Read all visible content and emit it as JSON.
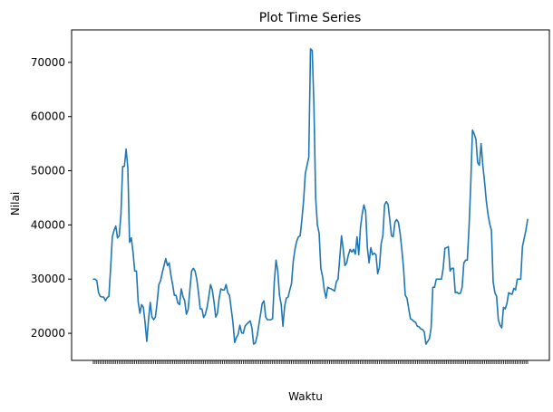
{
  "chart_data": {
    "type": "line",
    "title": "Plot Time Series",
    "xlabel": "Waktu",
    "ylabel": "Nilai",
    "ylim": [
      15000,
      76000
    ],
    "yticks": [
      20000,
      30000,
      40000,
      50000,
      60000,
      70000
    ],
    "grid": false,
    "series": [
      {
        "color": "#1f77b4",
        "values": [
          30000,
          30000,
          29700,
          27500,
          26800,
          26700,
          26700,
          26000,
          26600,
          26800,
          32000,
          37800,
          39000,
          39800,
          37600,
          38000,
          42000,
          50800,
          50800,
          54000,
          50500,
          36800,
          37600,
          35000,
          31500,
          31500,
          25800,
          23700,
          25300,
          24800,
          22000,
          18500,
          22500,
          25700,
          23000,
          22500,
          23000,
          25700,
          29000,
          29700,
          31200,
          32500,
          33800,
          32500,
          33000,
          30700,
          29000,
          27000,
          27000,
          25600,
          25300,
          28200,
          26800,
          26000,
          23500,
          24400,
          28000,
          31500,
          32000,
          31500,
          30000,
          27500,
          24500,
          24500,
          22900,
          23500,
          24800,
          26800,
          29000,
          28000,
          25800,
          23000,
          23700,
          26500,
          28200,
          28000,
          28000,
          29000,
          27500,
          27000,
          24500,
          22000,
          18300,
          19200,
          19800,
          21500,
          20100,
          20000,
          21300,
          21700,
          22000,
          22300,
          21000,
          18000,
          18200,
          19500,
          21500,
          23500,
          25500,
          26000,
          23000,
          22500,
          22500,
          22500,
          22700,
          29500,
          33500,
          31500,
          27000,
          25300,
          21300,
          25000,
          26500,
          26700,
          28000,
          29200,
          33300,
          35500,
          37000,
          37800,
          38000,
          41000,
          44500,
          49500,
          51000,
          52500,
          72500,
          72200,
          62000,
          45000,
          40000,
          38500,
          32000,
          30500,
          28000,
          26500,
          28500,
          28300,
          28200,
          28000,
          27800,
          29500,
          30000,
          34000,
          38000,
          35500,
          32500,
          33000,
          34500,
          35500,
          35000,
          35500,
          34600,
          37800,
          34500,
          39500,
          42000,
          43700,
          42500,
          35800,
          33000,
          35800,
          34500,
          34800,
          34500,
          31000,
          32200,
          36500,
          38000,
          43700,
          44300,
          43800,
          41000,
          38000,
          37800,
          40500,
          41000,
          40500,
          38500,
          35500,
          32000,
          27000,
          26500,
          24500,
          22700,
          22500,
          22200,
          22000,
          21300,
          21200,
          20800,
          20700,
          20300,
          18000,
          18500,
          19000,
          21000,
          28500,
          28500,
          30000,
          30000,
          30000,
          30000,
          32000,
          35700,
          35800,
          36000,
          31500,
          32000,
          32000,
          27500,
          27600,
          27300,
          27400,
          28500,
          33000,
          33500,
          33500,
          39500,
          47500,
          57500,
          56800,
          55800,
          51500,
          51000,
          55000,
          51000,
          48000,
          44500,
          42000,
          40200,
          39000,
          29500,
          27500,
          26800,
          22500,
          21500,
          21000,
          24800,
          24500,
          25500,
          27500,
          27300,
          27200,
          28300,
          28000,
          30000,
          30000,
          30000,
          36000,
          37500,
          39000,
          41000
        ]
      }
    ]
  }
}
